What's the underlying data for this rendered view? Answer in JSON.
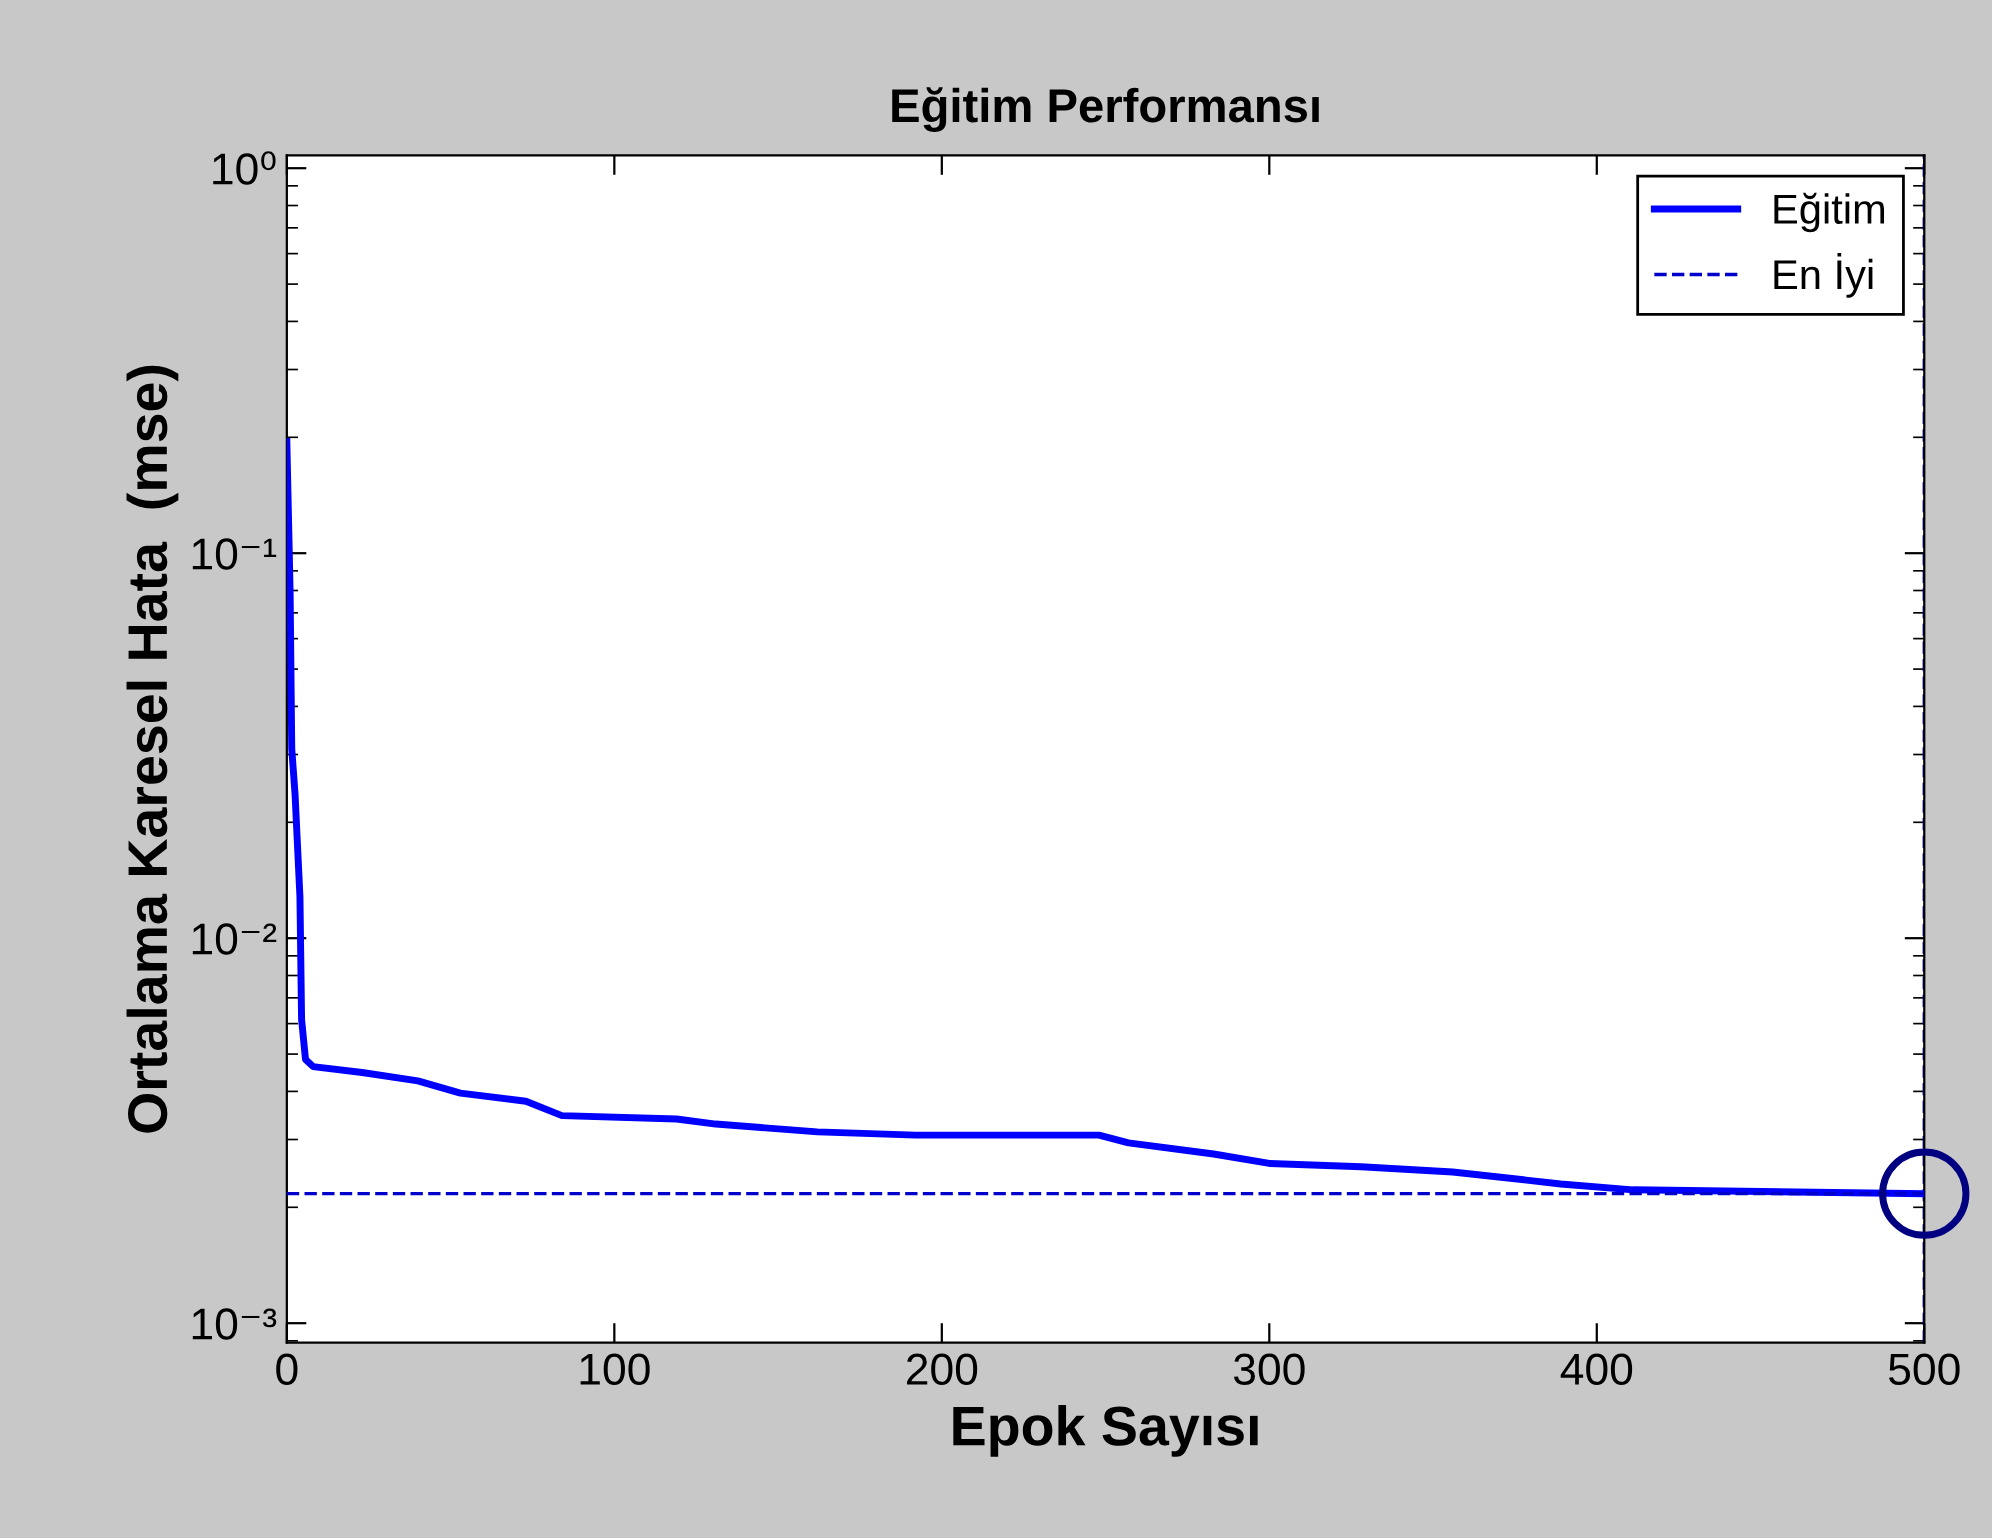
{
  "chart_data": {
    "type": "line",
    "title": "Eğitim Performansı",
    "xlabel": "Epok Sayısı",
    "ylabel": "Ortalama Karesel Hata  (mse)",
    "log": "y",
    "xlim": [
      0,
      500
    ],
    "xticks": [
      0,
      100,
      200,
      300,
      400,
      500
    ],
    "ylim": [
      0.00089,
      1.08
    ],
    "yticks": [
      {
        "value": 1,
        "label": "10⁰"
      },
      {
        "value": 0.1,
        "label": "10⁻¹"
      },
      {
        "value": 0.01,
        "label": "10⁻²"
      },
      {
        "value": 0.001,
        "label": "10⁻³"
      }
    ],
    "legend": "top right",
    "grid": false,
    "series": [
      {
        "name": "Eğitim",
        "color": "#0000ff",
        "line_style": "solid",
        "x": [
          0,
          1,
          1.5,
          2.5,
          4,
          4.5,
          5.7,
          8,
          23,
          40,
          53,
          73,
          84,
          119,
          131,
          162,
          192,
          248,
          257,
          283,
          300,
          328,
          356,
          389,
          411,
          500
        ],
        "values": [
          0.195,
          0.0785,
          0.031,
          0.0237,
          0.0128,
          0.00615,
          0.00484,
          0.00464,
          0.00448,
          0.00426,
          0.00396,
          0.00377,
          0.00346,
          0.00339,
          0.00329,
          0.00314,
          0.00308,
          0.00308,
          0.00294,
          0.00275,
          0.0026,
          0.00255,
          0.00247,
          0.0023,
          0.00222,
          0.00217
        ]
      },
      {
        "name": "En İyi",
        "color": "#0000cc",
        "line_style": "dashed",
        "x": [
          0,
          500
        ],
        "values": [
          0.00217,
          0.00217
        ]
      },
      {
        "color": "#000080",
        "type": "scatter",
        "marker": "circle",
        "x": [
          500
        ],
        "values": [
          0.00217
        ]
      }
    ],
    "ref_lines": [
      {
        "axis": "x",
        "value": 500,
        "color": "#0000cc",
        "line_style": "dashed"
      }
    ]
  }
}
